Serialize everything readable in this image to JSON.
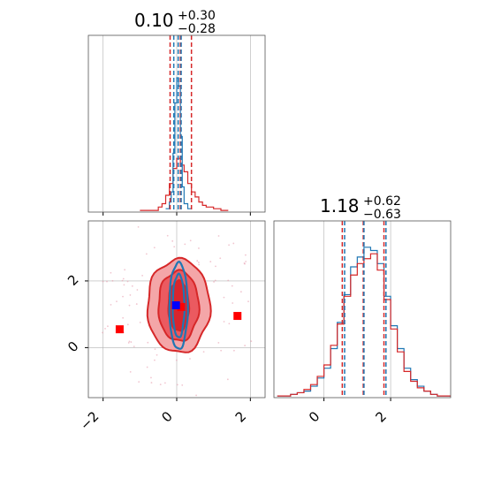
{
  "chart_data": {
    "type": "corner",
    "parameters": [
      {
        "median": "0.10",
        "upper": "+0.30",
        "lower": "−0.28",
        "range": [
          -2.4,
          2.4
        ],
        "ticks": [
          -2,
          0,
          2
        ],
        "tick_labels": [
          "−2",
          "0",
          "2"
        ],
        "quantile_lines": {
          "red": [
            -0.18,
            0.1,
            0.4
          ],
          "blue": [
            -0.08,
            0.04,
            0.12
          ]
        }
      },
      {
        "median": "1.18",
        "upper": "+0.62",
        "lower": "−0.63",
        "range": [
          -1.5,
          3.8
        ],
        "ticks": [
          0,
          2
        ],
        "tick_labels": [
          "0",
          "2"
        ],
        "quantile_lines": {
          "red": [
            0.55,
            1.18,
            1.8
          ],
          "blue": [
            0.62,
            1.2,
            1.86
          ]
        }
      }
    ],
    "hist_1": {
      "red": {
        "x": [
          -1.0,
          -0.8,
          -0.6,
          -0.5,
          -0.4,
          -0.3,
          -0.2,
          -0.1,
          0.0,
          0.1,
          0.2,
          0.3,
          0.4,
          0.5,
          0.6,
          0.7,
          0.8,
          1.0,
          1.2
        ],
        "y": [
          0.01,
          0.01,
          0.01,
          0.03,
          0.05,
          0.1,
          0.17,
          0.26,
          0.32,
          0.28,
          0.24,
          0.17,
          0.12,
          0.09,
          0.06,
          0.04,
          0.03,
          0.02,
          0.01
        ]
      },
      "blue": {
        "x": [
          -0.3,
          -0.2,
          -0.15,
          -0.1,
          -0.05,
          0.0,
          0.05,
          0.1,
          0.15,
          0.2,
          0.3
        ],
        "y": [
          0.02,
          0.06,
          0.12,
          0.35,
          0.65,
          0.8,
          0.75,
          0.45,
          0.15,
          0.05,
          0.02
        ]
      }
    },
    "hist_2": {
      "red": {
        "x": [
          -1.4,
          -1.2,
          -1.0,
          -0.8,
          -0.6,
          -0.4,
          -0.2,
          0.0,
          0.2,
          0.4,
          0.6,
          0.8,
          1.0,
          1.2,
          1.4,
          1.6,
          1.8,
          2.0,
          2.2,
          2.4,
          2.6,
          2.8,
          3.0,
          3.2,
          3.4,
          3.6
        ],
        "y": [
          0.01,
          0.01,
          0.02,
          0.03,
          0.05,
          0.08,
          0.13,
          0.2,
          0.32,
          0.45,
          0.62,
          0.75,
          0.82,
          0.85,
          0.88,
          0.78,
          0.6,
          0.42,
          0.28,
          0.16,
          0.1,
          0.06,
          0.04,
          0.02,
          0.01,
          0.01
        ]
      },
      "blue": {
        "x": [
          -1.4,
          -1.2,
          -1.0,
          -0.8,
          -0.6,
          -0.4,
          -0.2,
          0.0,
          0.2,
          0.4,
          0.6,
          0.8,
          1.0,
          1.2,
          1.4,
          1.6,
          1.8,
          2.0,
          2.2,
          2.4,
          2.6,
          2.8,
          3.0,
          3.2,
          3.4,
          3.6
        ],
        "y": [
          0.01,
          0.01,
          0.02,
          0.03,
          0.04,
          0.07,
          0.12,
          0.18,
          0.3,
          0.46,
          0.63,
          0.8,
          0.86,
          0.92,
          0.9,
          0.82,
          0.62,
          0.44,
          0.3,
          0.18,
          0.11,
          0.07,
          0.04,
          0.02,
          0.01,
          0.01
        ]
      }
    },
    "contours_2d": {
      "center": [
        0.05,
        1.25
      ],
      "red": [
        {
          "rx": 0.85,
          "ry": 1.4
        },
        {
          "rx": 0.55,
          "ry": 1.05
        },
        {
          "rx": 0.28,
          "ry": 0.75
        }
      ],
      "blue": [
        {
          "rx": 0.25,
          "ry": 1.3
        },
        {
          "rx": 0.16,
          "ry": 0.95
        }
      ]
    },
    "markers": {
      "red": [
        [
          -1.55,
          0.55
        ],
        [
          1.65,
          0.95
        ],
        [
          0.12,
          1.22
        ]
      ],
      "blue": [
        [
          -0.02,
          1.27
        ]
      ]
    },
    "grid": true,
    "colors": {
      "red": "#d62728",
      "blue": "#1f77b4",
      "red_fill": "#f08080",
      "dark_red": "#d8262e",
      "grid": "#b0b0b0"
    }
  }
}
